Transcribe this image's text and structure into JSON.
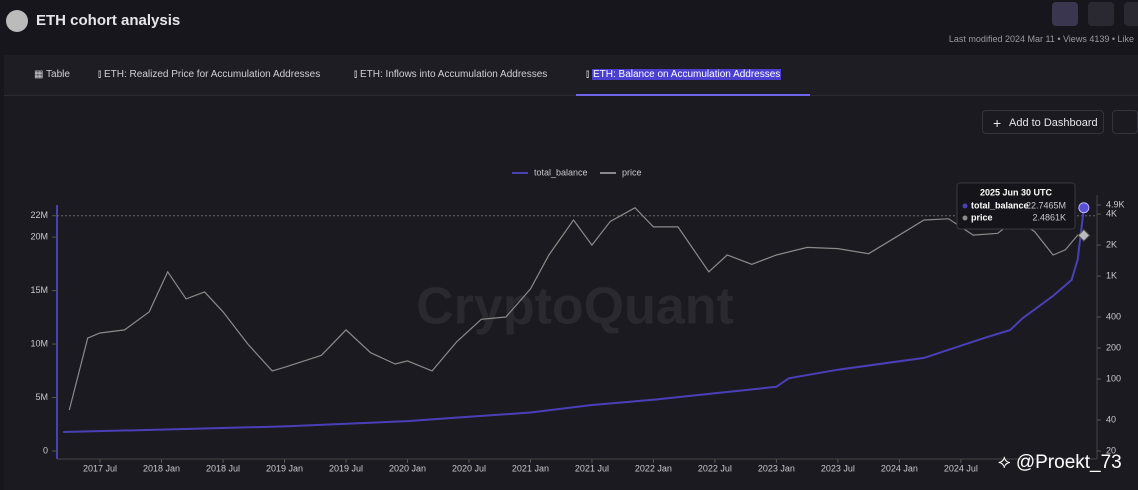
{
  "header": {
    "title": "ETH cohort analysis",
    "meta": "Last modified 2024 Mar 11 • Views 4139 • Like"
  },
  "tabs": [
    "Table",
    "ETH: Realized Price for Accumulation Addresses",
    "ETH: Inflows into Accumulation Addresses",
    "ETH: Balance on Accumulation Addresses"
  ],
  "button": "Add to Dashboard",
  "watermark": "CryptoQuant",
  "overlay": "@Proekt_73",
  "chart_data": {
    "type": "line",
    "xlim": [
      2017.15,
      2025.55
    ],
    "xticks": [
      {
        "value": 2017.5,
        "label": "2017 Jul"
      },
      {
        "value": 2018.0,
        "label": "2018 Jan"
      },
      {
        "value": 2018.5,
        "label": "2018 Jul"
      },
      {
        "value": 2019.0,
        "label": "2019 Jan"
      },
      {
        "value": 2019.5,
        "label": "2019 Jul"
      },
      {
        "value": 2020.0,
        "label": "2020 Jan"
      },
      {
        "value": 2020.5,
        "label": "2020 Jul"
      },
      {
        "value": 2021.0,
        "label": "2021 Jan"
      },
      {
        "value": 2021.5,
        "label": "2021 Jul"
      },
      {
        "value": 2022.0,
        "label": "2022 Jan"
      },
      {
        "value": 2022.5,
        "label": "2022 Jul"
      },
      {
        "value": 2023.0,
        "label": "2023 Jan"
      },
      {
        "value": 2023.5,
        "label": "2023 Jul"
      },
      {
        "value": 2024.0,
        "label": "2024 Jan"
      },
      {
        "value": 2024.5,
        "label": "2024 Jul"
      }
    ],
    "ylim": [
      0,
      23000000
    ],
    "yticks": [
      0,
      {
        "value": 5000000,
        "label": "5M"
      },
      {
        "value": 10000000,
        "label": "10M"
      },
      {
        "value": 15000000,
        "label": "15M"
      },
      {
        "value": 20000000,
        "label": "20M"
      },
      {
        "value": 22000000,
        "label": "22M"
      }
    ],
    "y2lim": [
      20,
      4900
    ],
    "y2scale": "log",
    "y2ticks": [
      20,
      40,
      100,
      200,
      400,
      {
        "value": 1000,
        "label": "1K"
      },
      {
        "value": 2000,
        "label": "2K"
      },
      {
        "value": 4000,
        "label": "4K"
      },
      {
        "value": 4900,
        "label": "4.9K"
      }
    ],
    "legend": "top",
    "series": [
      {
        "name": "total_balance",
        "color": "#4b3fb8",
        "x": [
          2017.2,
          2018.0,
          2019.0,
          2020.0,
          2020.5,
          2021.0,
          2021.5,
          2022.0,
          2022.5,
          2023.0,
          2023.1,
          2023.5,
          2024.2,
          2024.7,
          2024.9,
          2025.0,
          2025.25,
          2025.4,
          2025.45,
          2025.5
        ],
        "values": [
          1780000,
          2000000,
          2300000,
          2800000,
          3200000,
          3600000,
          4300000,
          4800000,
          5400000,
          6000000,
          6800000,
          7600000,
          8700000,
          10600000,
          11300000,
          12400000,
          14500000,
          16000000,
          17900000,
          22746500
        ]
      },
      {
        "name": "price",
        "color": "#8a8a8a",
        "axis": "y2",
        "x": [
          2017.25,
          2017.4,
          2017.5,
          2017.7,
          2017.9,
          2018.05,
          2018.2,
          2018.35,
          2018.5,
          2018.7,
          2018.9,
          2019.0,
          2019.3,
          2019.5,
          2019.7,
          2019.9,
          2020.0,
          2020.2,
          2020.4,
          2020.6,
          2020.8,
          2021.0,
          2021.15,
          2021.35,
          2021.5,
          2021.65,
          2021.85,
          2022.0,
          2022.2,
          2022.45,
          2022.6,
          2022.8,
          2023.0,
          2023.25,
          2023.5,
          2023.75,
          2023.95,
          2024.2,
          2024.4,
          2024.6,
          2024.8,
          2024.95,
          2025.1,
          2025.25,
          2025.35,
          2025.45,
          2025.5
        ],
        "values": [
          50,
          250,
          280,
          300,
          450,
          1100,
          600,
          700,
          450,
          220,
          120,
          130,
          170,
          300,
          180,
          140,
          150,
          120,
          230,
          380,
          400,
          750,
          1600,
          3500,
          2000,
          3400,
          4600,
          3000,
          3000,
          1100,
          1600,
          1300,
          1600,
          1900,
          1850,
          1650,
          2300,
          3500,
          3600,
          2500,
          2600,
          3600,
          2700,
          1600,
          1800,
          2500,
          2486.1
        ]
      }
    ],
    "tooltip": {
      "date": "2025 Jun 30 UTC",
      "values": [
        "22.7465M",
        "2.4861K"
      ]
    }
  }
}
